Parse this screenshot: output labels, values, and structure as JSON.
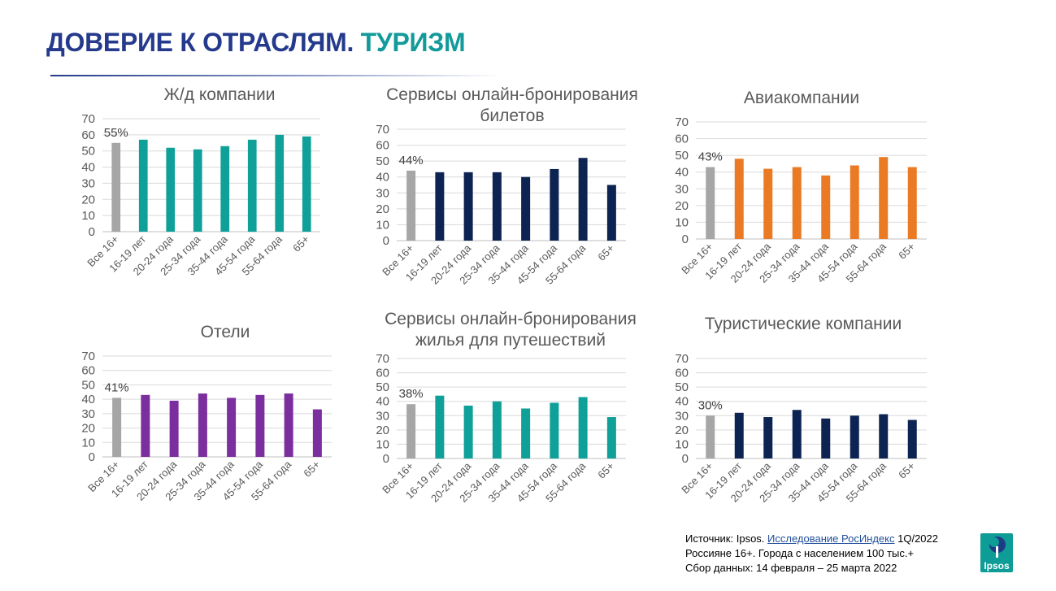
{
  "title": {
    "part1": "ДОВЕРИЕ К ОТРАСЛЯМ.",
    "part2": "ТУРИЗМ"
  },
  "colors": {
    "title_blue": "#253a8c",
    "title_teal": "#139a9a",
    "grey_bar": "#a6a6a6"
  },
  "chart_data": [
    {
      "type": "bar",
      "title": "Ж/д компании",
      "categories": [
        "Все 16+",
        "16-19 лет",
        "20-24 года",
        "25-34 года",
        "35-44 года",
        "45-54 года",
        "55-64 года",
        "65+"
      ],
      "values": [
        55,
        57,
        52,
        51,
        53,
        57,
        60,
        59
      ],
      "first_label": "55%",
      "color": "#0fa099",
      "ylim": [
        0,
        70
      ],
      "yticks": [
        0,
        10,
        20,
        30,
        40,
        50,
        60,
        70
      ],
      "grid": true
    },
    {
      "type": "bar",
      "title": "Сервисы онлайн-бронирования билетов",
      "categories": [
        "Все 16+",
        "16-19 лет",
        "20-24 года",
        "25-34 года",
        "35-44 года",
        "45-54 года",
        "55-64 года",
        "65+"
      ],
      "values": [
        44,
        43,
        43,
        43,
        40,
        45,
        52,
        35
      ],
      "first_label": "44%",
      "color": "#0d2453",
      "ylim": [
        0,
        70
      ],
      "yticks": [
        0,
        10,
        20,
        30,
        40,
        50,
        60,
        70
      ],
      "grid": true
    },
    {
      "type": "bar",
      "title": "Авиакомпании",
      "categories": [
        "Все 16+",
        "16-19 лет",
        "20-24 года",
        "25-34 года",
        "35-44 года",
        "45-54 года",
        "55-64 года",
        "65+"
      ],
      "values": [
        43,
        48,
        42,
        43,
        38,
        44,
        49,
        43
      ],
      "first_label": "43%",
      "color": "#ea7a24",
      "ylim": [
        0,
        70
      ],
      "yticks": [
        0,
        10,
        20,
        30,
        40,
        50,
        60,
        70
      ],
      "grid": true
    },
    {
      "type": "bar",
      "title": "Отели",
      "categories": [
        "Все 16+",
        "16-19 лет",
        "20-24 года",
        "25-34 года",
        "35-44 года",
        "45-54 года",
        "55-64 года",
        "65+"
      ],
      "values": [
        41,
        43,
        39,
        44,
        41,
        43,
        44,
        33
      ],
      "first_label": "41%",
      "color": "#7b2f9e",
      "ylim": [
        0,
        70
      ],
      "yticks": [
        0,
        10,
        20,
        30,
        40,
        50,
        60,
        70
      ],
      "grid": true
    },
    {
      "type": "bar",
      "title": "Сервисы онлайн-бронирования жилья для путешествий",
      "categories": [
        "Все 16+",
        "16-19 лет",
        "20-24 года",
        "25-34 года",
        "35-44 года",
        "45-54 года",
        "55-64 года",
        "65+"
      ],
      "values": [
        38,
        44,
        37,
        40,
        35,
        39,
        43,
        29
      ],
      "first_label": "38%",
      "color": "#0fa099",
      "ylim": [
        0,
        70
      ],
      "yticks": [
        0,
        10,
        20,
        30,
        40,
        50,
        60,
        70
      ],
      "grid": true
    },
    {
      "type": "bar",
      "title": "Туристические компании",
      "categories": [
        "Все 16+",
        "16-19 лет",
        "20-24 года",
        "25-34 года",
        "35-44 года",
        "45-54 года",
        "55-64 года",
        "65+"
      ],
      "values": [
        30,
        32,
        29,
        34,
        28,
        30,
        31,
        27
      ],
      "first_label": "30%",
      "color": "#0d2453",
      "ylim": [
        0,
        70
      ],
      "yticks": [
        0,
        10,
        20,
        30,
        40,
        50,
        60,
        70
      ],
      "grid": true
    }
  ],
  "source": {
    "prefix": "Источник: Ipsos.",
    "link": "Исследование РосИндекс",
    "suffix": "1Q/2022",
    "line2": "Россияне 16+. Города с населением 100 тыс.+",
    "line3": "Сбор данных: 14 февраля – 25 марта 2022"
  },
  "logo_text": "Ipsos"
}
